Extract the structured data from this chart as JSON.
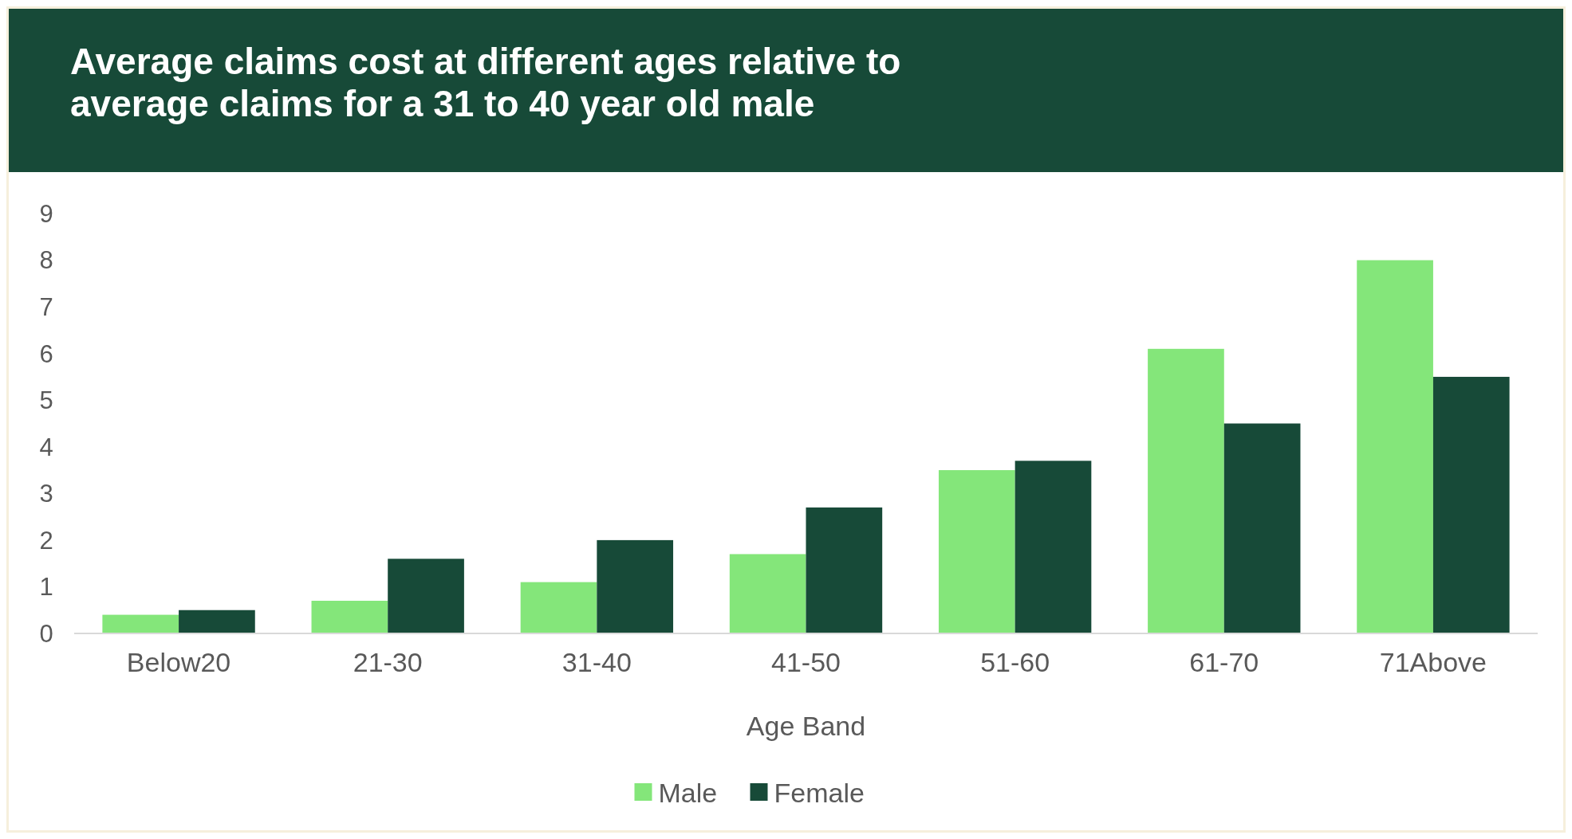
{
  "chart_data": {
    "type": "bar",
    "title": "Average claims cost at different ages relative to average claims for a 31 to 40 year old male",
    "xlabel": "Age Band",
    "categories": [
      "Below20",
      "21-30",
      "31-40",
      "41-50",
      "51-60",
      "61-70",
      "71Above"
    ],
    "series": [
      {
        "name": "Male",
        "color": "#84e67a",
        "values": [
          0.4,
          0.7,
          1.1,
          1.7,
          3.5,
          6.1,
          8.0
        ]
      },
      {
        "name": "Female",
        "color": "#174a38",
        "values": [
          0.5,
          1.6,
          2.0,
          2.7,
          3.7,
          4.5,
          5.5
        ]
      }
    ],
    "ylim": [
      0,
      9
    ],
    "yticks": [
      0,
      1,
      2,
      3,
      4,
      5,
      6,
      7,
      8,
      9
    ],
    "grid": false,
    "legend": "bottom"
  }
}
